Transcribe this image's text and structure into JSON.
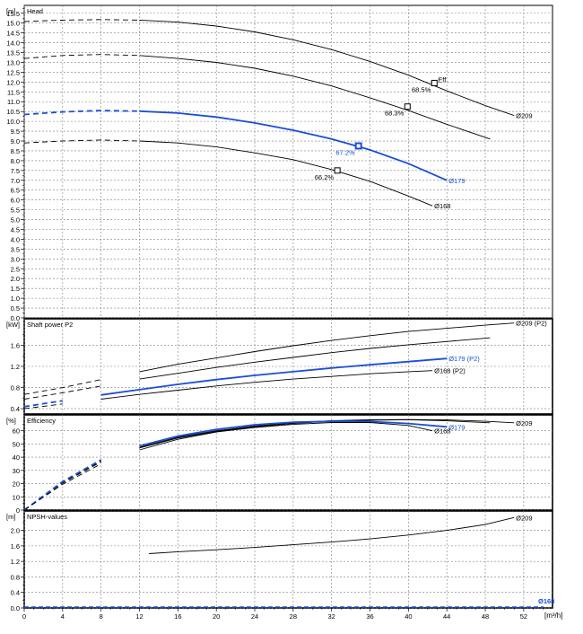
{
  "colors": {
    "primary": "#000000",
    "highlight": "#1a4fd6",
    "grid": "#7f7f7f"
  },
  "x_axis": {
    "unit": "[m³/h]",
    "range": [
      0,
      55
    ],
    "ticks": [
      0,
      4,
      8,
      12,
      16,
      20,
      24,
      28,
      32,
      36,
      40,
      44,
      48,
      52
    ]
  },
  "chart_data": [
    {
      "type": "line",
      "title": "Head",
      "ylabel": "[m]",
      "ylim": [
        0,
        15.9
      ],
      "y_ticks": [
        0.0,
        0.5,
        1.0,
        1.5,
        2.0,
        2.5,
        3.0,
        3.5,
        4.0,
        4.5,
        5.0,
        5.5,
        6.0,
        6.5,
        7.0,
        7.5,
        8.0,
        8.5,
        9.0,
        9.5,
        10.0,
        10.5,
        11.0,
        11.5,
        12.0,
        12.5,
        13.0,
        13.5,
        14.0,
        14.5,
        15.0,
        15.5
      ],
      "y_tick_labels": [
        "0.0",
        "0.5",
        "1.0",
        "1.5",
        "2.0",
        "2.5",
        "3.0",
        "3.5",
        "4.0",
        "4.5",
        "5.0",
        "5.5",
        "6.0",
        "6.5",
        "7.0",
        "7.5",
        "8.0",
        "8.5",
        "9.0",
        "9.5",
        "10.0",
        "10.5",
        "11.0",
        "11.5",
        "12.0",
        "12.5",
        "13.0",
        "13.5",
        "14.0",
        "14.5",
        "15.0",
        "15.5"
      ],
      "grid": true,
      "series": [
        {
          "name": "Ø209",
          "highlight": false,
          "dashed_until": 12,
          "x": [
            0,
            4,
            8,
            12,
            16,
            20,
            24,
            28,
            32,
            36,
            40,
            44,
            48,
            51
          ],
          "y": [
            15.08,
            15.15,
            15.18,
            15.15,
            15.05,
            14.85,
            14.55,
            14.15,
            13.65,
            13.05,
            12.35,
            11.55,
            10.8,
            10.3
          ]
        },
        {
          "name": "",
          "highlight": false,
          "dashed_until": 12,
          "x": [
            0,
            4,
            8,
            12,
            16,
            20,
            24,
            28,
            32,
            36,
            40,
            44,
            48.5
          ],
          "y": [
            13.2,
            13.35,
            13.4,
            13.35,
            13.2,
            13.0,
            12.7,
            12.3,
            11.8,
            11.2,
            10.55,
            9.85,
            9.1
          ]
        },
        {
          "name": "Ø179",
          "highlight": true,
          "dashed_until": 12,
          "x": [
            0,
            4,
            8,
            12,
            16,
            20,
            24,
            28,
            32,
            36,
            40,
            44
          ],
          "y": [
            10.35,
            10.48,
            10.55,
            10.52,
            10.42,
            10.22,
            9.92,
            9.55,
            9.1,
            8.55,
            7.85,
            7.0
          ]
        },
        {
          "name": "Ø168",
          "highlight": false,
          "dashed_until": 12,
          "x": [
            0,
            4,
            8,
            12,
            16,
            20,
            24,
            28,
            32,
            36,
            40,
            42.5
          ],
          "y": [
            8.9,
            9.0,
            9.05,
            9.0,
            8.9,
            8.7,
            8.4,
            8.05,
            7.55,
            6.95,
            6.2,
            5.7
          ]
        }
      ],
      "markers": [
        {
          "x": 42.7,
          "y": 11.95,
          "label": "68.5%",
          "note": "Eff.",
          "highlight": false
        },
        {
          "x": 39.9,
          "y": 10.75,
          "label": "68.3%",
          "highlight": false
        },
        {
          "x": 34.8,
          "y": 8.75,
          "label": "67.2%",
          "highlight": true
        },
        {
          "x": 32.6,
          "y": 7.5,
          "label": "66.2%",
          "highlight": false
        }
      ]
    },
    {
      "type": "line",
      "title": "Shaft power P2",
      "ylabel": "[kW]",
      "ylim": [
        0.3,
        2.1
      ],
      "y_ticks": [
        0.4,
        0.8,
        1.2,
        1.6
      ],
      "y_tick_labels": [
        "0.4",
        "0.8",
        "1.2",
        "1.6"
      ],
      "grid": true,
      "series": [
        {
          "name": "Ø209 (P2)",
          "highlight": false,
          "dashed_until": 10,
          "x": [
            0,
            4,
            8,
            12,
            16,
            20,
            24,
            28,
            32,
            36,
            40,
            44,
            48,
            51
          ],
          "y": [
            0.67,
            0.8,
            0.95,
            1.1,
            1.24,
            1.36,
            1.48,
            1.59,
            1.69,
            1.78,
            1.86,
            1.92,
            1.98,
            2.02
          ]
        },
        {
          "name": "",
          "highlight": false,
          "dashed_until": 10,
          "x": [
            0,
            4,
            8,
            12,
            16,
            20,
            24,
            28,
            32,
            36,
            40,
            44,
            48.5
          ],
          "y": [
            0.58,
            0.7,
            0.83,
            0.96,
            1.07,
            1.18,
            1.28,
            1.37,
            1.46,
            1.54,
            1.61,
            1.67,
            1.74
          ]
        },
        {
          "name": "Ø179 (P2)",
          "highlight": true,
          "dashed_until": 7,
          "x": [
            0,
            4,
            8,
            12,
            16,
            20,
            24,
            28,
            32,
            36,
            40,
            44
          ],
          "y": [
            0.44,
            0.55,
            0.66,
            0.76,
            0.86,
            0.95,
            1.03,
            1.1,
            1.17,
            1.23,
            1.29,
            1.35
          ]
        },
        {
          "name": "Ø168 (P2)",
          "highlight": false,
          "dashed_until": 7,
          "x": [
            0,
            4,
            8,
            12,
            16,
            20,
            24,
            28,
            32,
            36,
            40,
            42.5
          ],
          "y": [
            0.4,
            0.49,
            0.58,
            0.67,
            0.75,
            0.83,
            0.9,
            0.96,
            1.01,
            1.06,
            1.1,
            1.12
          ]
        }
      ]
    },
    {
      "type": "line",
      "title": "Efficiency",
      "ylabel": "[%]",
      "ylim": [
        0,
        72
      ],
      "y_ticks": [
        0,
        10,
        20,
        30,
        40,
        50,
        60
      ],
      "y_tick_labels": [
        "0",
        "10",
        "20",
        "30",
        "40",
        "50",
        "60"
      ],
      "grid": true,
      "series": [
        {
          "name": "Ø209",
          "highlight": false,
          "dashed_until": 9,
          "x": [
            0,
            4,
            8,
            12,
            16,
            20,
            24,
            28,
            32,
            36,
            40,
            44,
            48,
            51
          ],
          "y": [
            0,
            21,
            37,
            47.5,
            55,
            60,
            63.5,
            66,
            67.6,
            68.3,
            68.5,
            68.2,
            67.2,
            66
          ]
        },
        {
          "name": "",
          "highlight": false,
          "dashed_until": 9,
          "x": [
            0,
            4,
            8,
            12,
            16,
            20,
            24,
            28,
            32,
            36,
            40,
            44,
            48.5
          ],
          "y": [
            0,
            20.5,
            36.5,
            47,
            54.5,
            59.5,
            63,
            65.5,
            67.2,
            68,
            68.3,
            67.5,
            66
          ]
        },
        {
          "name": "Ø179",
          "highlight": true,
          "dashed_until": 9,
          "x": [
            0,
            4,
            8,
            12,
            16,
            20,
            24,
            28,
            32,
            36,
            40,
            44
          ],
          "y": [
            0,
            21.5,
            38,
            48.5,
            56,
            61,
            64.5,
            66.5,
            67.2,
            67,
            65.5,
            63
          ]
        },
        {
          "name": "Ø168",
          "highlight": false,
          "dashed_until": 9,
          "x": [
            0,
            4,
            8,
            12,
            16,
            20,
            24,
            28,
            32,
            36,
            40,
            42.5
          ],
          "y": [
            0,
            19.5,
            35,
            45.5,
            53.5,
            59,
            62.5,
            64.8,
            66.2,
            66.2,
            64,
            60
          ]
        }
      ]
    },
    {
      "type": "line",
      "title": "NPSH-values",
      "ylabel": "[m]",
      "ylim": [
        0,
        2.5
      ],
      "y_ticks": [
        0.0,
        0.4,
        0.8,
        1.2,
        1.6,
        2.0
      ],
      "y_tick_labels": [
        "0.0",
        "0.4",
        "0.8",
        "1.2",
        "1.6",
        "2.0"
      ],
      "grid": true,
      "series": [
        {
          "name": "Ø209",
          "highlight": false,
          "dashed_until": 0,
          "x": [
            13,
            16,
            20,
            24,
            28,
            32,
            36,
            40,
            44,
            48,
            51
          ],
          "y": [
            1.4,
            1.45,
            1.5,
            1.56,
            1.63,
            1.7,
            1.78,
            1.88,
            2.0,
            2.15,
            2.33
          ]
        }
      ],
      "baseline_label": "Ø168"
    }
  ]
}
